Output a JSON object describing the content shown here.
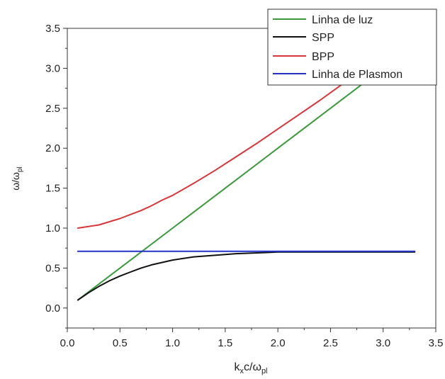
{
  "chart_data": {
    "type": "line",
    "title": "",
    "xlabel": {
      "main": "k",
      "sub1": "x",
      "mid": "c/ω",
      "sub2": "pl"
    },
    "ylabel": {
      "main": "ω/ω",
      "sub": "pl"
    },
    "xlim": [
      0.0,
      3.5
    ],
    "ylim": [
      -0.25,
      3.5
    ],
    "xticks": [
      0.0,
      0.5,
      1.0,
      1.5,
      2.0,
      2.5,
      3.0,
      3.5
    ],
    "xtick_labels": [
      "0.0",
      "0.5",
      "1.0",
      "1.5",
      "2.0",
      "2.5",
      "3.0",
      "3.5"
    ],
    "yticks": [
      0.0,
      0.5,
      1.0,
      1.5,
      2.0,
      2.5,
      3.0,
      3.5
    ],
    "ytick_labels": [
      "0.0",
      "0.5",
      "1.0",
      "1.5",
      "2.0",
      "2.5",
      "3.0",
      "3.5"
    ],
    "grid": false,
    "legend_position": "top-right",
    "series": [
      {
        "name": "Linha de luz",
        "color": "#3a9a3a",
        "x": [
          0.1,
          0.5,
          1.0,
          1.5,
          2.0,
          2.5,
          2.85
        ],
        "y": [
          0.1,
          0.5,
          1.0,
          1.5,
          2.0,
          2.5,
          2.85
        ]
      },
      {
        "name": "SPP",
        "color": "#111111",
        "x": [
          0.1,
          0.2,
          0.3,
          0.4,
          0.5,
          0.6,
          0.7,
          0.8,
          0.9,
          1.0,
          1.2,
          1.4,
          1.6,
          1.8,
          2.0,
          2.5,
          3.0,
          3.3
        ],
        "y": [
          0.1,
          0.19,
          0.27,
          0.34,
          0.4,
          0.45,
          0.5,
          0.54,
          0.57,
          0.6,
          0.64,
          0.66,
          0.68,
          0.69,
          0.7,
          0.7,
          0.7,
          0.7
        ]
      },
      {
        "name": "BPP",
        "color": "#d9363a",
        "x": [
          0.1,
          0.2,
          0.3,
          0.4,
          0.5,
          0.6,
          0.7,
          0.8,
          0.9,
          1.0,
          1.2,
          1.4,
          1.6,
          1.8,
          2.0,
          2.2,
          2.4,
          2.6,
          2.8,
          2.95
        ],
        "y": [
          1.0,
          1.02,
          1.04,
          1.08,
          1.12,
          1.17,
          1.22,
          1.28,
          1.35,
          1.41,
          1.56,
          1.72,
          1.89,
          2.06,
          2.24,
          2.42,
          2.6,
          2.79,
          2.97,
          3.11
        ]
      },
      {
        "name": "Linha de Plasmon",
        "color": "#2233cc",
        "x": [
          0.1,
          3.3
        ],
        "y": [
          0.71,
          0.71
        ]
      }
    ]
  }
}
